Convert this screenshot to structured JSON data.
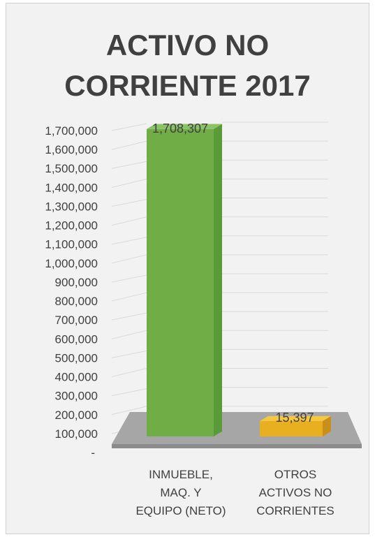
{
  "chart_data": {
    "type": "bar",
    "title_lines": [
      "ACTIVO NO",
      "CORRIENTE 2017"
    ],
    "categories": [
      [
        "INMUEBLE,",
        "MAQ. Y",
        "EQUIPO (NETO)"
      ],
      [
        "OTROS",
        "ACTIVOS NO",
        "CORRIENTES"
      ]
    ],
    "values": [
      1708307,
      15397
    ],
    "data_labels": [
      "1,708,307",
      "15,397"
    ],
    "ylim": [
      0,
      1700000
    ],
    "yticks": [
      {
        "value": 0,
        "label": "-"
      },
      {
        "value": 100000,
        "label": "100,000"
      },
      {
        "value": 200000,
        "label": "200,000"
      },
      {
        "value": 300000,
        "label": "300,000"
      },
      {
        "value": 400000,
        "label": "400,000"
      },
      {
        "value": 500000,
        "label": "500,000"
      },
      {
        "value": 600000,
        "label": "600,000"
      },
      {
        "value": 700000,
        "label": "700,000"
      },
      {
        "value": 800000,
        "label": "800,000"
      },
      {
        "value": 900000,
        "label": "900,000"
      },
      {
        "value": 1000000,
        "label": "1,000,000"
      },
      {
        "value": 1100000,
        "label": "1,100,000"
      },
      {
        "value": 1200000,
        "label": "1,200,000"
      },
      {
        "value": 1300000,
        "label": "1,300,000"
      },
      {
        "value": 1400000,
        "label": "1,400,000"
      },
      {
        "value": 1500000,
        "label": "1,500,000"
      },
      {
        "value": 1600000,
        "label": "1,600,000"
      },
      {
        "value": 1700000,
        "label": "1,700,000"
      }
    ],
    "grid": true,
    "colors": {
      "bar1_front": "#70ad47",
      "bar1_side": "#5a9a38",
      "bar1_top": "#8cc266",
      "bar2_front": "#e8b020",
      "bar2_side": "#c8901a",
      "bar2_top": "#f4c842",
      "floor": "#a6a6a6",
      "floor_edge": "#8c8c8c",
      "grid": "#d9d9d9",
      "text": "#404040"
    }
  }
}
